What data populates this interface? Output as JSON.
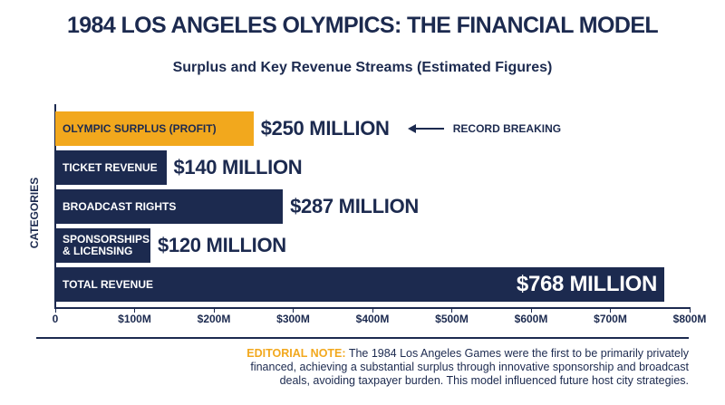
{
  "chart_data": {
    "type": "bar",
    "orientation": "horizontal",
    "title": "1984 LOS ANGELES OLYMPICS: THE FINANCIAL MODEL",
    "subtitle": "Surplus and Key Revenue Streams (Estimated Figures)",
    "y_label": "CATEGORIES",
    "categories": [
      "OLYMPIC SURPLUS (PROFIT)",
      "TICKET REVENUE",
      "BROADCAST RIGHTS",
      "SPONSORSHIPS & LICENSING",
      "TOTAL REVENUE"
    ],
    "values": [
      250,
      140,
      287,
      120,
      768
    ],
    "value_labels": [
      "$250 MILLION",
      "$140 MILLION",
      "$287 MILLION",
      "$120 MILLION",
      "$768 MILLION"
    ],
    "colors": [
      "#f2a81d",
      "#1c2a4f",
      "#1c2a4f",
      "#1c2a4f",
      "#1c2a4f"
    ],
    "xlim": [
      0,
      800
    ],
    "xticks": [
      0,
      {
        "value": 100,
        "label": "$100M"
      },
      {
        "value": 200,
        "label": "$200M"
      },
      {
        "value": 300,
        "label": "$300M"
      },
      {
        "value": 400,
        "label": "$400M"
      },
      {
        "value": 500,
        "label": "$500M"
      },
      {
        "value": 600,
        "label": "$600M"
      },
      {
        "value": 700,
        "label": "$700M"
      },
      {
        "value": 800,
        "label": "$800M"
      }
    ],
    "annotation": "RECORD BREAKING",
    "note_label": "EDITORIAL NOTE:",
    "note_text": "The 1984 Los Angeles Games were the first to be primarily privately financed, achieving a substantial surplus through innovative sponsorship and broadcast deals, avoiding taxpayer burden. This model influenced future host city strategies."
  }
}
